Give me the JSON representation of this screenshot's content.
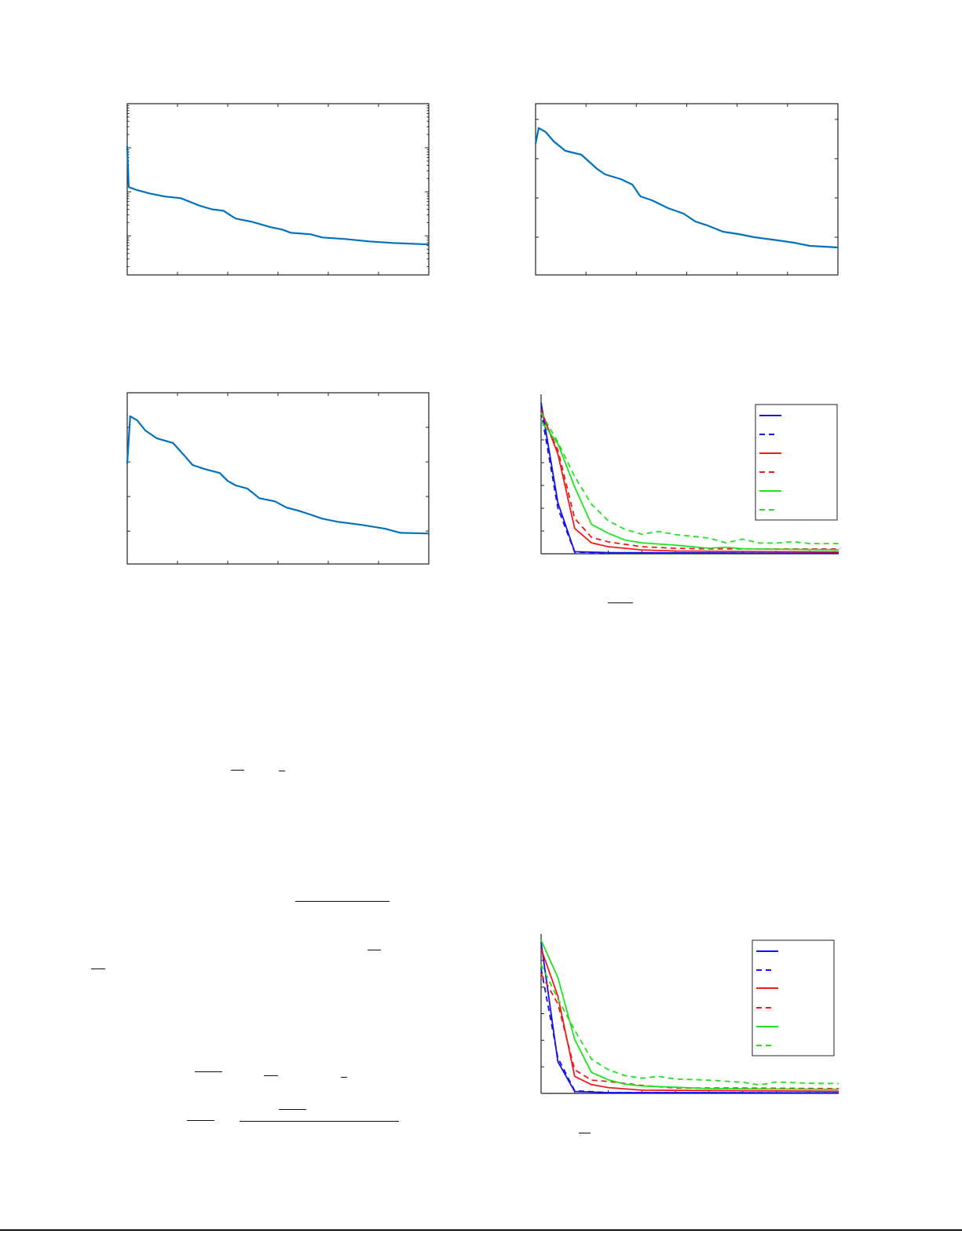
{
  "colors": {
    "single_series": "#0072bd",
    "blue": "#1414e6",
    "red": "#ee1c1c",
    "green": "#22e022",
    "axis": "#222222"
  },
  "chart_data": [
    {
      "type": "line",
      "title": "",
      "xlabel": "",
      "ylabel": "",
      "xlim": [
        0,
        6
      ],
      "ylim": [
        0.0013,
        10
      ],
      "yscale": "log",
      "grid": false,
      "legend": "none",
      "series": [
        {
          "color": "#0072bd",
          "style": "solid",
          "x": [
            0,
            0.03,
            0.2,
            0.44,
            0.75,
            1.06,
            1.22,
            1.45,
            1.69,
            1.92,
            2.08,
            2.16,
            2.47,
            2.86,
            3.09,
            3.25,
            3.64,
            3.88,
            4.34,
            4.81,
            5.28,
            6.0
          ],
          "y": [
            1.09,
            0.128,
            0.109,
            0.092,
            0.078,
            0.072,
            0.061,
            0.048,
            0.04,
            0.037,
            0.028,
            0.0247,
            0.021,
            0.0157,
            0.0139,
            0.0118,
            0.0109,
            0.0092,
            0.0085,
            0.0075,
            0.0069,
            0.0064
          ]
        }
      ]
    },
    {
      "type": "line",
      "title": "",
      "xlabel": "",
      "ylabel": "",
      "xlim": [
        0,
        6
      ],
      "ylim": [
        0.04,
        4.4
      ],
      "yscale": "linear",
      "grid": false,
      "legend": "none",
      "series": [
        {
          "color": "#0072bd",
          "style": "solid",
          "x": [
            0,
            0.06,
            0.2,
            0.36,
            0.59,
            0.91,
            1.22,
            1.38,
            1.69,
            1.92,
            2.08,
            2.31,
            2.63,
            2.94,
            3.17,
            3.41,
            3.72,
            4.03,
            4.34,
            4.81,
            5.13,
            5.44,
            6.0
          ],
          "y": [
            3.38,
            3.78,
            3.68,
            3.44,
            3.2,
            3.1,
            2.74,
            2.6,
            2.48,
            2.34,
            2.04,
            1.94,
            1.74,
            1.6,
            1.4,
            1.3,
            1.14,
            1.08,
            1.0,
            0.92,
            0.86,
            0.78,
            0.74
          ]
        }
      ]
    },
    {
      "type": "line",
      "title": "",
      "xlabel": "",
      "ylabel": "",
      "xlim": [
        0,
        6
      ],
      "ylim": [
        0.05,
        5.0
      ],
      "yscale": "linear",
      "grid": false,
      "legend": "none",
      "series": [
        {
          "color": "#0072bd",
          "style": "solid",
          "x": [
            0,
            0.06,
            0.2,
            0.36,
            0.59,
            0.91,
            1.14,
            1.3,
            1.53,
            1.84,
            2.0,
            2.16,
            2.39,
            2.63,
            2.94,
            3.17,
            3.41,
            3.64,
            3.88,
            4.19,
            4.66,
            5.13,
            5.44,
            6.0
          ],
          "y": [
            2.95,
            4.32,
            4.2,
            3.91,
            3.68,
            3.55,
            3.18,
            2.91,
            2.8,
            2.68,
            2.45,
            2.32,
            2.23,
            1.95,
            1.86,
            1.68,
            1.59,
            1.48,
            1.36,
            1.27,
            1.18,
            1.07,
            0.95,
            0.93
          ]
        }
      ]
    },
    {
      "type": "line",
      "title": "",
      "xlabel": "",
      "ylabel": "",
      "xlim": [
        0,
        8.86
      ],
      "ylim": [
        0,
        7
      ],
      "yscale": "linear",
      "grid": false,
      "legend": "top-right",
      "series": [
        {
          "color": "#1414e6",
          "style": "solid",
          "x": [
            0,
            0.5,
            1,
            2,
            4,
            6,
            8.86
          ],
          "y": [
            6.63,
            2.24,
            0.09,
            0.05,
            0.04,
            0.03,
            0.02
          ]
        },
        {
          "color": "#1414e6",
          "style": "dashed",
          "x": [
            0,
            0.5,
            1,
            2,
            4,
            8.86
          ],
          "y": [
            6.27,
            2.0,
            0.07,
            0.04,
            0.03,
            0.02
          ]
        },
        {
          "color": "#ee1c1c",
          "style": "solid",
          "x": [
            0,
            0.5,
            1,
            1.5,
            2,
            3,
            4,
            6,
            8.86
          ],
          "y": [
            6.32,
            4.38,
            1.11,
            0.48,
            0.31,
            0.17,
            0.12,
            0.1,
            0.08
          ]
        },
        {
          "color": "#ee1c1c",
          "style": "dashed",
          "x": [
            0,
            0.5,
            1,
            1.5,
            2,
            3,
            4,
            5,
            8.86
          ],
          "y": [
            6.2,
            4.55,
            1.55,
            0.72,
            0.52,
            0.31,
            0.24,
            0.21,
            0.21
          ]
        },
        {
          "color": "#22e022",
          "style": "solid",
          "x": [
            0,
            0.5,
            1,
            1.5,
            2,
            2.5,
            3,
            4,
            5,
            5.5,
            6,
            8.86
          ],
          "y": [
            5.83,
            4.83,
            2.93,
            1.29,
            0.9,
            0.6,
            0.48,
            0.38,
            0.24,
            0.29,
            0.22,
            0.17
          ]
        },
        {
          "color": "#22e022",
          "style": "dashed",
          "x": [
            0,
            0.5,
            1,
            1.5,
            2,
            2.5,
            3,
            3.5,
            4,
            5,
            5.5,
            6,
            6.5,
            7,
            7.5,
            8,
            8.86
          ],
          "y": [
            6.2,
            4.9,
            3.39,
            2.18,
            1.45,
            1.07,
            0.86,
            0.98,
            0.84,
            0.69,
            0.48,
            0.64,
            0.47,
            0.47,
            0.53,
            0.45,
            0.45
          ]
        }
      ]
    },
    {
      "type": "line",
      "title": "",
      "xlabel": "",
      "ylabel": "",
      "xlim": [
        0,
        8.86
      ],
      "ylim": [
        0,
        6
      ],
      "yscale": "linear",
      "grid": false,
      "legend": "top-right",
      "series": [
        {
          "color": "#1414e6",
          "style": "solid",
          "x": [
            0,
            0.5,
            1,
            2,
            4,
            8.86
          ],
          "y": [
            5.69,
            1.19,
            0.07,
            0.03,
            0.03,
            0.02
          ]
        },
        {
          "color": "#1414e6",
          "style": "dashed",
          "x": [
            0,
            0.5,
            1,
            2,
            8.86
          ],
          "y": [
            4.7,
            1.34,
            0.1,
            0.03,
            0.02
          ]
        },
        {
          "color": "#ee1c1c",
          "style": "solid",
          "x": [
            0,
            0.5,
            1,
            1.5,
            2,
            3,
            8.86
          ],
          "y": [
            5.45,
            3.66,
            0.64,
            0.33,
            0.22,
            0.12,
            0.08
          ]
        },
        {
          "color": "#ee1c1c",
          "style": "dashed",
          "x": [
            0,
            0.5,
            1,
            1.5,
            2,
            3,
            4,
            6,
            8.86
          ],
          "y": [
            4.5,
            3.37,
            0.89,
            0.5,
            0.45,
            0.3,
            0.2,
            0.2,
            0.18
          ]
        },
        {
          "color": "#22e022",
          "style": "solid",
          "x": [
            0,
            0.5,
            1,
            1.5,
            2,
            2.5,
            3,
            4,
            5,
            8.86
          ],
          "y": [
            5.77,
            4.36,
            2.03,
            0.79,
            0.51,
            0.35,
            0.28,
            0.23,
            0.18,
            0.15
          ]
        },
        {
          "color": "#22e022",
          "style": "dashed",
          "x": [
            0,
            0.5,
            1,
            1.5,
            2,
            2.5,
            3,
            3.5,
            4,
            5,
            6,
            6.5,
            7,
            8,
            8.86
          ],
          "y": [
            4.85,
            3.56,
            2.38,
            1.29,
            0.89,
            0.67,
            0.57,
            0.64,
            0.54,
            0.5,
            0.42,
            0.32,
            0.43,
            0.38,
            0.37
          ]
        }
      ]
    }
  ]
}
